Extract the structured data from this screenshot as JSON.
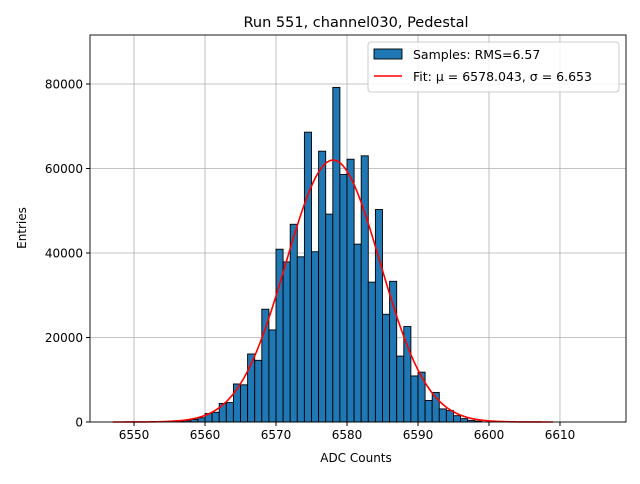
{
  "chart_data": {
    "type": "bar",
    "title": "Run 551, channel030, Pedestal",
    "xlabel": "ADC Counts",
    "ylabel": "Entries",
    "xlim": [
      6543.8,
      6619.3
    ],
    "ylim": [
      0,
      91600
    ],
    "xticks": [
      6550,
      6560,
      6570,
      6580,
      6590,
      6600,
      6610
    ],
    "yticks": [
      0,
      20000,
      40000,
      60000,
      80000
    ],
    "grid": true,
    "legend_position": "top-right",
    "bin_width": 1,
    "histogram": {
      "name": "Samples: RMS=6.57",
      "color": "#1f77b4",
      "bin_left_edges": [
        6556,
        6557,
        6558,
        6559,
        6560,
        6561,
        6562,
        6563,
        6564,
        6565,
        6566,
        6567,
        6568,
        6569,
        6570,
        6571,
        6572,
        6573,
        6574,
        6575,
        6576,
        6577,
        6578,
        6579,
        6580,
        6581,
        6582,
        6583,
        6584,
        6585,
        6586,
        6587,
        6588,
        6589,
        6590,
        6591,
        6592,
        6593,
        6594,
        6595,
        6596,
        6597,
        6598
      ],
      "values": [
        200,
        300,
        600,
        1000,
        2000,
        2300,
        4400,
        4600,
        9000,
        8800,
        16100,
        14600,
        26700,
        21800,
        40900,
        37900,
        46800,
        39100,
        68600,
        40300,
        64100,
        49200,
        79200,
        58600,
        62200,
        42100,
        63000,
        33100,
        50300,
        25500,
        33300,
        15600,
        22600,
        10900,
        11800,
        5100,
        7000,
        3100,
        2700,
        1500,
        800,
        400,
        200
      ]
    },
    "fit": {
      "name": "Fit: μ = 6578.043, σ = 6.653",
      "color": "#ff0000",
      "mu": 6578.043,
      "sigma": 6.653,
      "amplitude": 62000,
      "x_range": [
        6547,
        6609
      ]
    }
  }
}
